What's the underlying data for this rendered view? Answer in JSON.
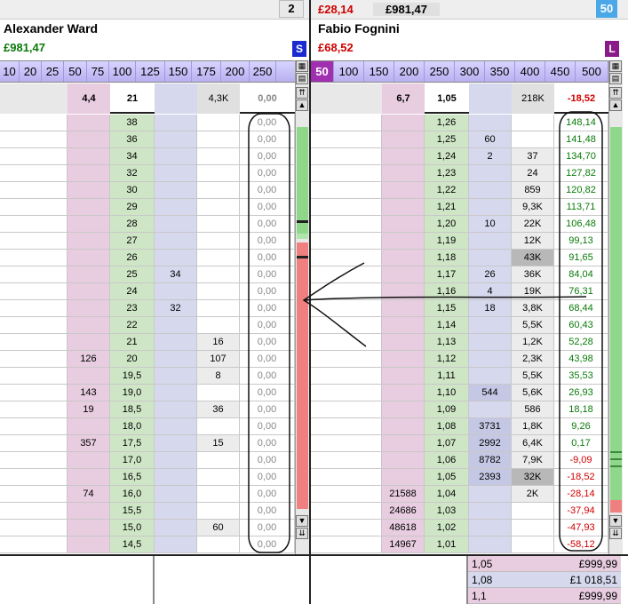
{
  "left": {
    "count_badge": "2",
    "player_name": "Alexander Ward",
    "pl": "£981,47",
    "side_badge": "S",
    "stakes": [
      "10",
      "20",
      "25",
      "50",
      "75",
      "100",
      "125",
      "150",
      "175",
      "200",
      "250"
    ],
    "summary": {
      "lay": "4,4",
      "odds": "21",
      "vol": "4,3K",
      "pl": "0,00"
    },
    "rows": [
      {
        "lay": "",
        "odds": "38",
        "back": "",
        "vol": "",
        "pl": "0,00"
      },
      {
        "lay": "",
        "odds": "36",
        "back": "",
        "vol": "",
        "pl": "0,00"
      },
      {
        "lay": "",
        "odds": "34",
        "back": "",
        "vol": "",
        "pl": "0,00"
      },
      {
        "lay": "",
        "odds": "32",
        "back": "",
        "vol": "",
        "pl": "0,00"
      },
      {
        "lay": "",
        "odds": "30",
        "back": "",
        "vol": "",
        "pl": "0,00"
      },
      {
        "lay": "",
        "odds": "29",
        "back": "",
        "vol": "",
        "pl": "0,00"
      },
      {
        "lay": "",
        "odds": "28",
        "back": "",
        "vol": "",
        "pl": "0,00"
      },
      {
        "lay": "",
        "odds": "27",
        "back": "",
        "vol": "",
        "pl": "0,00"
      },
      {
        "lay": "",
        "odds": "26",
        "back": "",
        "vol": "",
        "pl": "0,00"
      },
      {
        "lay": "",
        "odds": "25",
        "back": "34",
        "vol": "",
        "pl": "0,00"
      },
      {
        "lay": "",
        "odds": "24",
        "back": "",
        "vol": "",
        "pl": "0,00"
      },
      {
        "lay": "",
        "odds": "23",
        "back": "32",
        "vol": "",
        "pl": "0,00"
      },
      {
        "lay": "",
        "odds": "22",
        "back": "",
        "vol": "",
        "pl": "0,00"
      },
      {
        "lay": "",
        "odds": "21",
        "back": "",
        "vol": "16",
        "pl": "0,00"
      },
      {
        "lay": "126",
        "odds": "20",
        "back": "",
        "vol": "107",
        "pl": "0,00"
      },
      {
        "lay": "",
        "odds": "19,5",
        "back": "",
        "vol": "8",
        "pl": "0,00"
      },
      {
        "lay": "143",
        "odds": "19,0",
        "back": "",
        "vol": "",
        "pl": "0,00"
      },
      {
        "lay": "19",
        "odds": "18,5",
        "back": "",
        "vol": "36",
        "pl": "0,00"
      },
      {
        "lay": "",
        "odds": "18,0",
        "back": "",
        "vol": "",
        "pl": "0,00"
      },
      {
        "lay": "357",
        "odds": "17,5",
        "back": "",
        "vol": "15",
        "pl": "0,00"
      },
      {
        "lay": "",
        "odds": "17,0",
        "back": "",
        "vol": "",
        "pl": "0,00"
      },
      {
        "lay": "",
        "odds": "16,5",
        "back": "",
        "vol": "",
        "pl": "0,00"
      },
      {
        "lay": "74",
        "odds": "16,0",
        "back": "",
        "vol": "",
        "pl": "0,00"
      },
      {
        "lay": "",
        "odds": "15,5",
        "back": "",
        "vol": "",
        "pl": "0,00"
      },
      {
        "lay": "",
        "odds": "15,0",
        "back": "",
        "vol": "60",
        "pl": "0,00"
      },
      {
        "lay": "",
        "odds": "14,5",
        "back": "",
        "vol": "",
        "pl": "0,00"
      }
    ]
  },
  "right": {
    "pl_top": "£28,14",
    "pl_total": "£981,47",
    "count_badge": "50",
    "player_name": "Fabio Fognini",
    "pl": "£68,52",
    "side_badge": "L",
    "stakes": [
      "50",
      "100",
      "150",
      "200",
      "250",
      "300",
      "350",
      "400",
      "450",
      "500"
    ],
    "summary": {
      "lay": "6,7",
      "odds": "1,05",
      "vol": "218K",
      "pl": "-18,52"
    },
    "rows": [
      {
        "lay": "",
        "odds": "1,26",
        "back": "",
        "vol": "",
        "pl": "148,14",
        "neg": false
      },
      {
        "lay": "",
        "odds": "1,25",
        "back": "60",
        "vol": "",
        "pl": "141,48",
        "neg": false
      },
      {
        "lay": "",
        "odds": "1,24",
        "back": "2",
        "vol": "37",
        "pl": "134,70",
        "neg": false
      },
      {
        "lay": "",
        "odds": "1,23",
        "back": "",
        "vol": "24",
        "pl": "127,82",
        "neg": false
      },
      {
        "lay": "",
        "odds": "1,22",
        "back": "",
        "vol": "859",
        "pl": "120,82",
        "neg": false
      },
      {
        "lay": "",
        "odds": "1,21",
        "back": "",
        "vol": "9,3K",
        "pl": "113,71",
        "neg": false
      },
      {
        "lay": "",
        "odds": "1,20",
        "back": "10",
        "vol": "22K",
        "pl": "106,48",
        "neg": false
      },
      {
        "lay": "",
        "odds": "1,19",
        "back": "",
        "vol": "12K",
        "pl": "99,13",
        "neg": false
      },
      {
        "lay": "",
        "odds": "1,18",
        "back": "",
        "vol": "43K",
        "pl": "91,65",
        "neg": false
      },
      {
        "lay": "",
        "odds": "1,17",
        "back": "26",
        "vol": "36K",
        "pl": "84,04",
        "neg": false
      },
      {
        "lay": "",
        "odds": "1,16",
        "back": "4",
        "vol": "19K",
        "pl": "76,31",
        "neg": false
      },
      {
        "lay": "",
        "odds": "1,15",
        "back": "18",
        "vol": "3,8K",
        "pl": "68,44",
        "neg": false
      },
      {
        "lay": "",
        "odds": "1,14",
        "back": "",
        "vol": "5,5K",
        "pl": "60,43",
        "neg": false
      },
      {
        "lay": "",
        "odds": "1,13",
        "back": "",
        "vol": "1,2K",
        "pl": "52,28",
        "neg": false
      },
      {
        "lay": "",
        "odds": "1,12",
        "back": "",
        "vol": "2,3K",
        "pl": "43,98",
        "neg": false
      },
      {
        "lay": "",
        "odds": "1,11",
        "back": "",
        "vol": "5,5K",
        "pl": "35,53",
        "neg": false
      },
      {
        "lay": "",
        "odds": "1,10",
        "back": "544",
        "vol": "5,6K",
        "pl": "26,93",
        "neg": false
      },
      {
        "lay": "",
        "odds": "1,09",
        "back": "",
        "vol": "586",
        "pl": "18,18",
        "neg": false
      },
      {
        "lay": "",
        "odds": "1,08",
        "back": "3731",
        "vol": "1,8K",
        "pl": "9,26",
        "neg": false
      },
      {
        "lay": "",
        "odds": "1,07",
        "back": "2992",
        "vol": "6,4K",
        "pl": "0,17",
        "neg": false
      },
      {
        "lay": "",
        "odds": "1,06",
        "back": "8782",
        "vol": "7,9K",
        "pl": "-9,09",
        "neg": true
      },
      {
        "lay": "",
        "odds": "1,05",
        "back": "2393",
        "vol": "32K",
        "pl": "-18,52",
        "neg": true
      },
      {
        "lay": "21588",
        "odds": "1,04",
        "back": "",
        "vol": "2K",
        "pl": "-28,14",
        "neg": true
      },
      {
        "lay": "24686",
        "odds": "1,03",
        "back": "",
        "vol": "",
        "pl": "-37,94",
        "neg": true
      },
      {
        "lay": "48618",
        "odds": "1,02",
        "back": "",
        "vol": "",
        "pl": "-47,93",
        "neg": true
      },
      {
        "lay": "14967",
        "odds": "1,01",
        "back": "",
        "vol": "",
        "pl": "-58,12",
        "neg": true
      }
    ],
    "footer": [
      {
        "odds": "1,05",
        "amount": "£999,99"
      },
      {
        "odds": "1,08",
        "amount": "£1 018,51"
      },
      {
        "odds": "1,1",
        "amount": "£999,99"
      }
    ]
  },
  "colors": {
    "green": "#0a7a0a",
    "red": "#d00000",
    "lay": "#e8cce0",
    "odds": "#cfe6c6",
    "back": "#d6d8ee",
    "vol": "#ececec",
    "accent": "#a030b0"
  }
}
